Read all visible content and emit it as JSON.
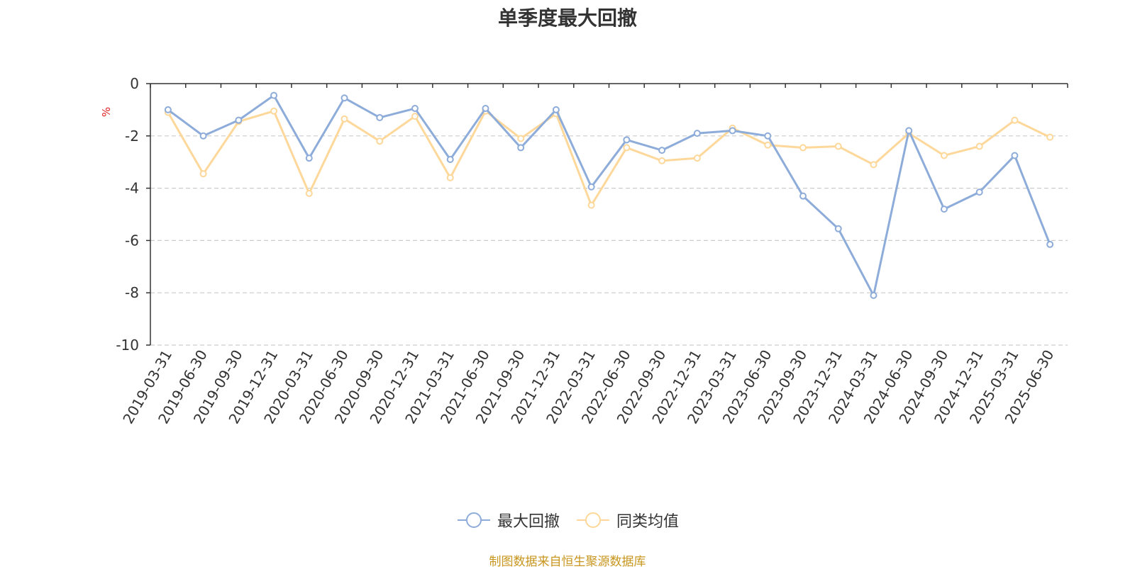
{
  "title": "单季度最大回撤",
  "source_note": "制图数据来自恒生聚源数据库",
  "legend": [
    {
      "label": "最大回撤",
      "icon": "circle-line-icon"
    },
    {
      "label": "同类均值",
      "icon": "circle-line-icon"
    }
  ],
  "colors": {
    "series1": "#8eacd9",
    "series2": "#fdd89a",
    "ylabel": "#e02020",
    "source": "#c8961e",
    "axis": "#333333",
    "grid": "#cccccc"
  },
  "chart_data": {
    "type": "line",
    "title": "单季度最大回撤",
    "xlabel": "",
    "ylabel": "%",
    "ylim": [
      -10,
      0
    ],
    "yticks": [
      0,
      -2,
      -4,
      -6,
      -8,
      -10
    ],
    "grid": "horizontal dashed",
    "legend_position": "bottom",
    "categories": [
      "2019-03-31",
      "2019-06-30",
      "2019-09-30",
      "2019-12-31",
      "2020-03-31",
      "2020-06-30",
      "2020-09-30",
      "2020-12-31",
      "2021-03-31",
      "2021-06-30",
      "2021-09-30",
      "2021-12-31",
      "2022-03-31",
      "2022-06-30",
      "2022-09-30",
      "2022-12-31",
      "2023-03-31",
      "2023-06-30",
      "2023-09-30",
      "2023-12-31",
      "2024-03-31",
      "2024-06-30",
      "2024-09-30",
      "2024-12-31",
      "2025-03-31",
      "2025-06-30"
    ],
    "series": [
      {
        "name": "最大回撤",
        "values": [
          -1.0,
          -2.0,
          -1.4,
          -0.45,
          -2.85,
          -0.55,
          -1.3,
          -0.95,
          -2.9,
          -0.95,
          -2.45,
          -1.0,
          -3.95,
          -2.15,
          -2.55,
          -1.9,
          -1.8,
          -2.0,
          -4.3,
          -5.55,
          -8.1,
          -1.8,
          -4.8,
          -4.15,
          -2.75,
          -6.15
        ]
      },
      {
        "name": "同类均值",
        "values": [
          -1.1,
          -3.45,
          -1.45,
          -1.05,
          -4.2,
          -1.35,
          -2.2,
          -1.25,
          -3.6,
          -1.05,
          -2.1,
          -1.15,
          -4.65,
          -2.45,
          -2.95,
          -2.85,
          -1.7,
          -2.35,
          -2.45,
          -2.4,
          -3.1,
          -1.9,
          -2.75,
          -2.4,
          -1.4,
          -2.05
        ]
      }
    ]
  }
}
